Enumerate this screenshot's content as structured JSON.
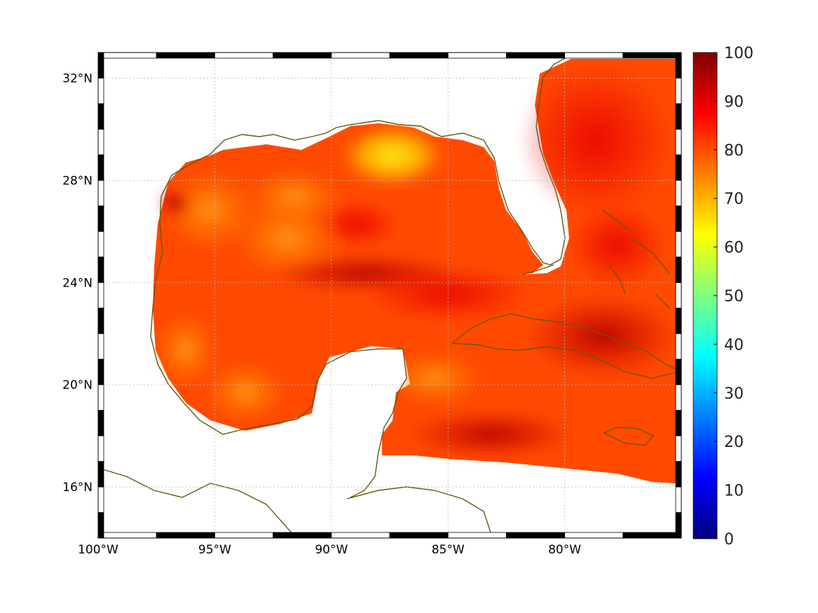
{
  "map": {
    "lon_range": [
      -100,
      -75
    ],
    "lat_range": [
      14,
      33
    ],
    "grid": true,
    "lon_ticks": [
      {
        "value": -100,
        "label": "100°W"
      },
      {
        "value": -95,
        "label": "95°W"
      },
      {
        "value": -90,
        "label": "90°W"
      },
      {
        "value": -85,
        "label": "85°W"
      },
      {
        "value": -80,
        "label": "80°W"
      }
    ],
    "lat_ticks": [
      {
        "value": 16,
        "label": "16°N"
      },
      {
        "value": 20,
        "label": "20°N"
      },
      {
        "value": 24,
        "label": "24°N"
      },
      {
        "value": 28,
        "label": "28°N"
      },
      {
        "value": 32,
        "label": "32°N"
      }
    ],
    "colors": {
      "coastline": "#6b5410",
      "grid": "#bbbbbb",
      "frame_dark": "#000000",
      "frame_light": "#ffffff"
    }
  },
  "colorbar": {
    "min": 0,
    "max": 100,
    "ticks": [
      {
        "value": 0,
        "label": "0"
      },
      {
        "value": 10,
        "label": "10"
      },
      {
        "value": 20,
        "label": "20"
      },
      {
        "value": 30,
        "label": "30"
      },
      {
        "value": 40,
        "label": "40"
      },
      {
        "value": 50,
        "label": "50"
      },
      {
        "value": 60,
        "label": "60"
      },
      {
        "value": 70,
        "label": "70"
      },
      {
        "value": 80,
        "label": "80"
      },
      {
        "value": 90,
        "label": "90"
      },
      {
        "value": 100,
        "label": "100"
      }
    ],
    "colormap": "jet",
    "colors": [
      "#00007f",
      "#0000ff",
      "#007fff",
      "#00ffff",
      "#7fff7f",
      "#ffff00",
      "#ff7f00",
      "#ff0000",
      "#7f0000"
    ]
  }
}
